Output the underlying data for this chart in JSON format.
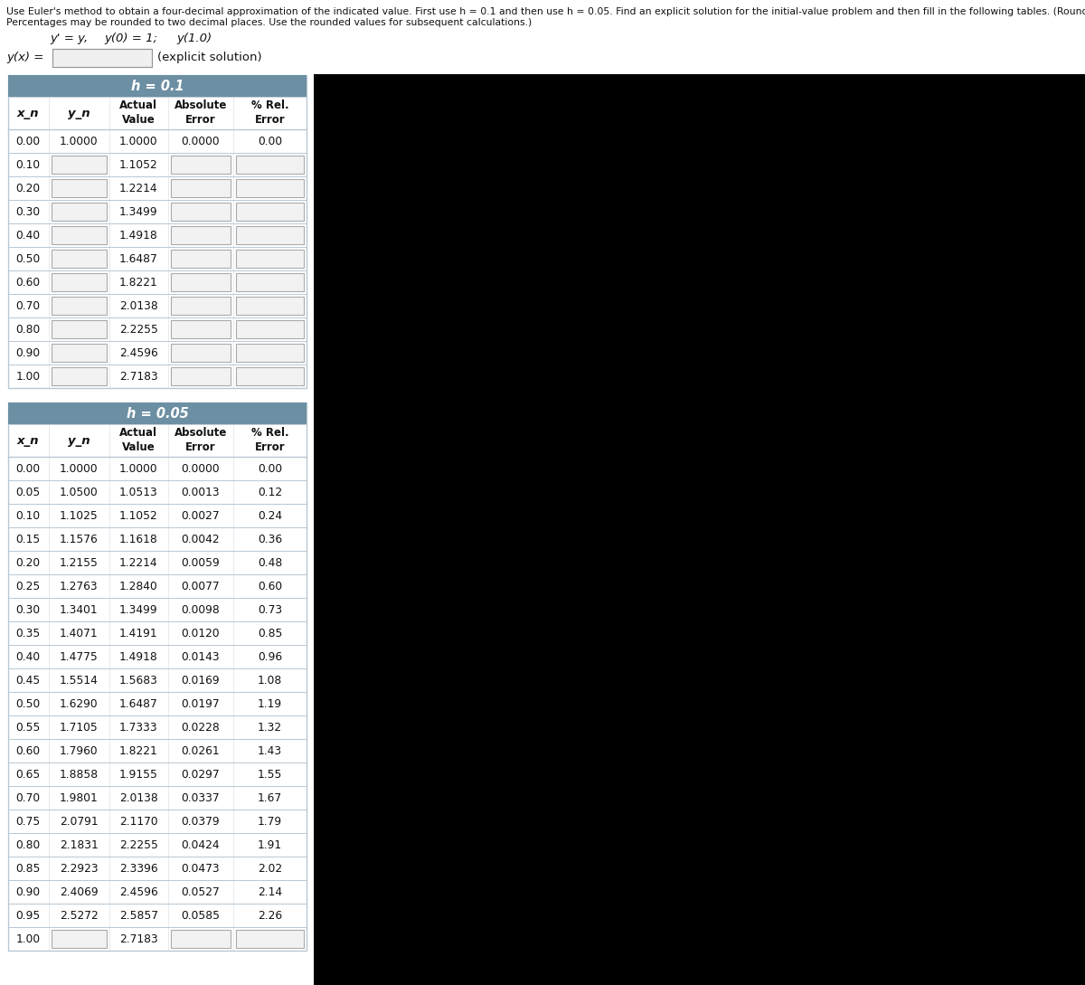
{
  "title_line1": "Use Euler's method to obtain a four-decimal approximation of the indicated value. First use h = 0.1 and then use h = 0.05. Find an explicit solution for the initial-value problem and then fill in the following tables. (Round your answers to four decimal places.",
  "title_line2": "Percentages may be rounded to two decimal places. Use the rounded values for subsequent calculations.)",
  "header_color": "#6d8fa3",
  "border_color": "#b8c8d4",
  "input_box_color": "#f2f2f2",
  "input_box_border": "#aaaaaa",
  "h1_label": "0.1",
  "h2_label": "0.05",
  "col_headers_line1": [
    "x_n",
    "y_n",
    "Actual",
    "Absolute",
    "% Rel."
  ],
  "col_headers_line2": [
    "",
    "",
    "Value",
    "Error",
    "Error"
  ],
  "h1_xn": [
    "0.00",
    "0.10",
    "0.20",
    "0.30",
    "0.40",
    "0.50",
    "0.60",
    "0.70",
    "0.80",
    "0.90",
    "1.00"
  ],
  "h1_yn": [
    "1.0000",
    "",
    "",
    "",
    "",
    "",
    "",
    "",
    "",
    "",
    ""
  ],
  "h1_actual": [
    "1.0000",
    "1.1052",
    "1.2214",
    "1.3499",
    "1.4918",
    "1.6487",
    "1.8221",
    "2.0138",
    "2.2255",
    "2.4596",
    "2.7183"
  ],
  "h1_abs": [
    "0.0000",
    "",
    "",
    "",
    "",
    "",
    "",
    "",
    "",
    "",
    ""
  ],
  "h1_rel": [
    "0.00",
    "",
    "",
    "",
    "",
    "",
    "",
    "",
    "",
    "",
    ""
  ],
  "h2_xn": [
    "0.00",
    "0.05",
    "0.10",
    "0.15",
    "0.20",
    "0.25",
    "0.30",
    "0.35",
    "0.40",
    "0.45",
    "0.50",
    "0.55",
    "0.60",
    "0.65",
    "0.70",
    "0.75",
    "0.80",
    "0.85",
    "0.90",
    "0.95",
    "1.00"
  ],
  "h2_yn": [
    "1.0000",
    "1.0500",
    "1.1025",
    "1.1576",
    "1.2155",
    "1.2763",
    "1.3401",
    "1.4071",
    "1.4775",
    "1.5514",
    "1.6290",
    "1.7105",
    "1.7960",
    "1.8858",
    "1.9801",
    "2.0791",
    "2.1831",
    "2.2923",
    "2.4069",
    "2.5272",
    ""
  ],
  "h2_actual": [
    "1.0000",
    "1.0513",
    "1.1052",
    "1.1618",
    "1.2214",
    "1.2840",
    "1.3499",
    "1.4191",
    "1.4918",
    "1.5683",
    "1.6487",
    "1.7333",
    "1.8221",
    "1.9155",
    "2.0138",
    "2.1170",
    "2.2255",
    "2.3396",
    "2.4596",
    "2.5857",
    "2.7183"
  ],
  "h2_abs": [
    "0.0000",
    "0.0013",
    "0.0027",
    "0.0042",
    "0.0059",
    "0.0077",
    "0.0098",
    "0.0120",
    "0.0143",
    "0.0169",
    "0.0197",
    "0.0228",
    "0.0261",
    "0.0297",
    "0.0337",
    "0.0379",
    "0.0424",
    "0.0473",
    "0.0527",
    "0.0585",
    ""
  ],
  "h2_rel": [
    "0.00",
    "0.12",
    "0.24",
    "0.36",
    "0.48",
    "0.60",
    "0.73",
    "0.85",
    "0.96",
    "1.08",
    "1.19",
    "1.32",
    "1.43",
    "1.55",
    "1.67",
    "1.79",
    "1.91",
    "2.02",
    "2.14",
    "2.26",
    ""
  ]
}
